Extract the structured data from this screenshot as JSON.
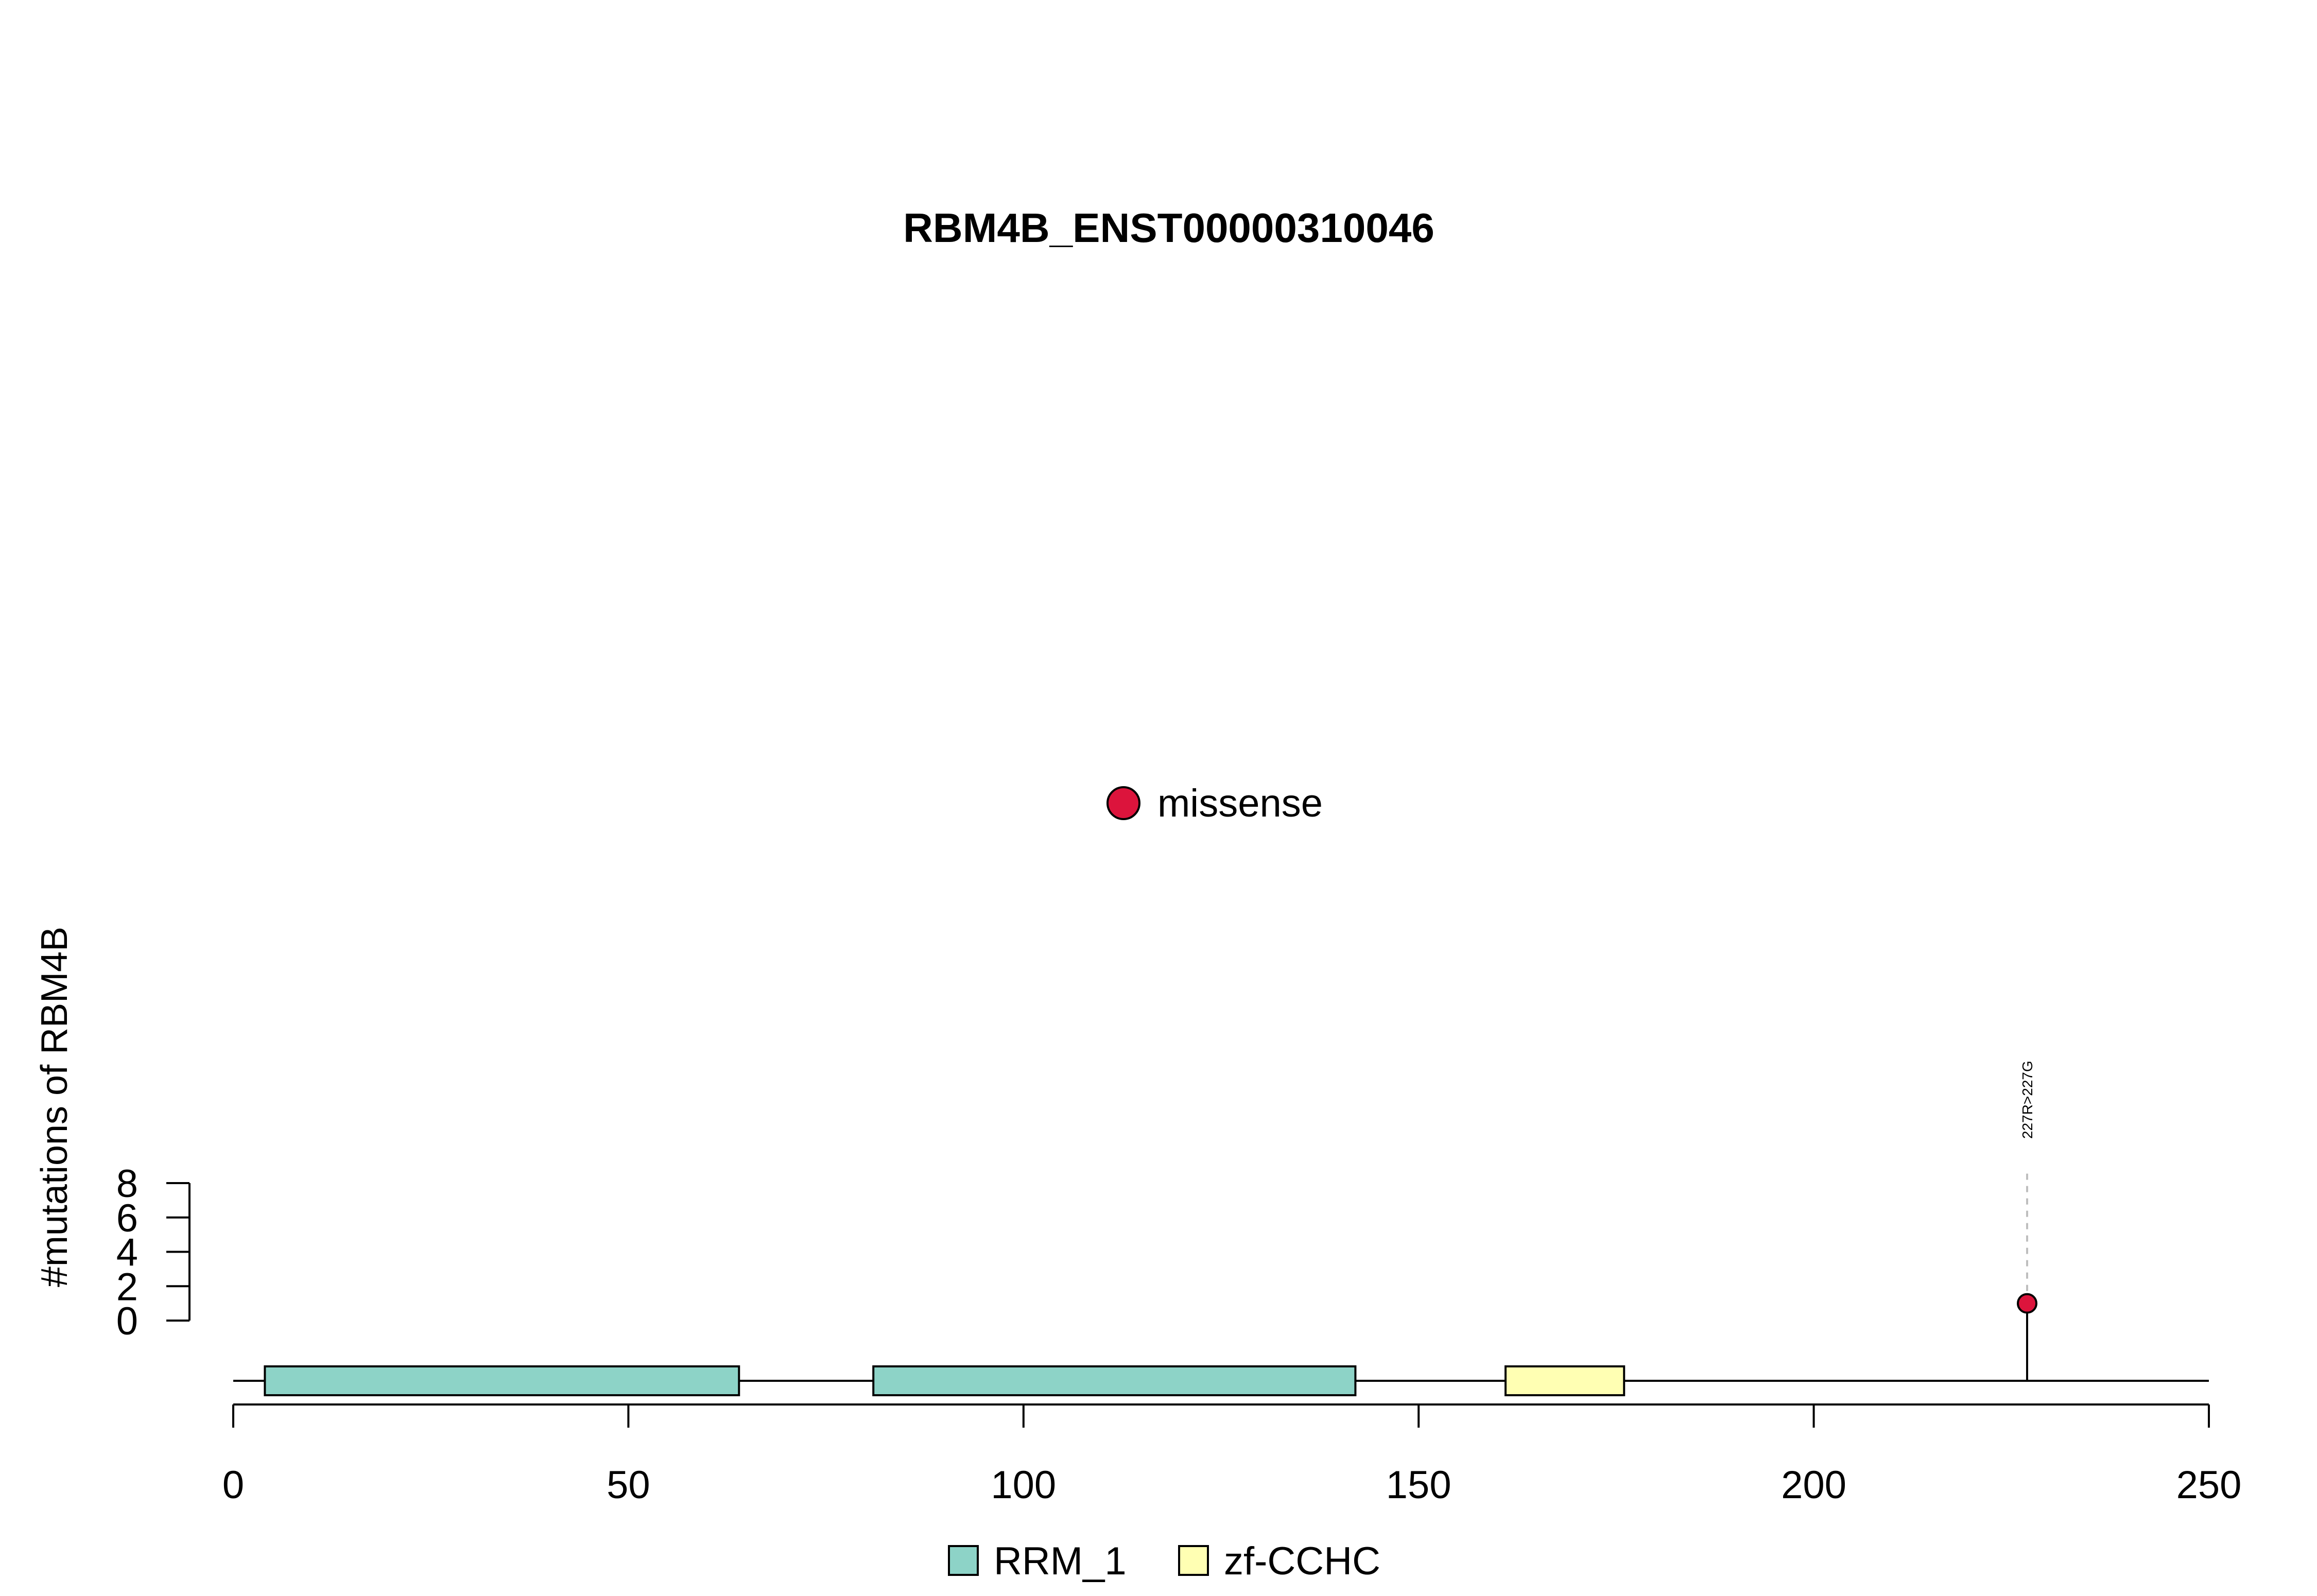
{
  "chart_data": {
    "type": "lollipop",
    "title": "RBM4B_ENST00000310046",
    "ylabel": "#mutations of RBM4B",
    "xlim": [
      0,
      250
    ],
    "x_ticks": [
      "0",
      "50",
      "100",
      "150",
      "200",
      "250"
    ],
    "ylim": [
      0,
      8
    ],
    "y_ticks": [
      "0",
      "2",
      "4",
      "6",
      "8"
    ],
    "mutation_legend": [
      {
        "label": "missense",
        "color": "#DC143C"
      }
    ],
    "mutations": [
      {
        "position": 227,
        "count": 1,
        "label": "227R>227G",
        "type": "missense",
        "color": "#DC143C"
      }
    ],
    "domains": [
      {
        "name": "RRM_1",
        "start": 4,
        "end": 64,
        "color": "#8DD3C7"
      },
      {
        "name": "RRM_1",
        "start": 81,
        "end": 142,
        "color": "#8DD3C7"
      },
      {
        "name": "zf-CCHC",
        "start": 161,
        "end": 176,
        "color": "#FFFFB3"
      }
    ],
    "domain_legend": [
      {
        "name": "RRM_1",
        "color": "#8DD3C7"
      },
      {
        "name": "zf-CCHC",
        "color": "#FFFFB3"
      }
    ],
    "backbone_color": "#000000",
    "stem_guide_color": "#BEBEBE"
  }
}
